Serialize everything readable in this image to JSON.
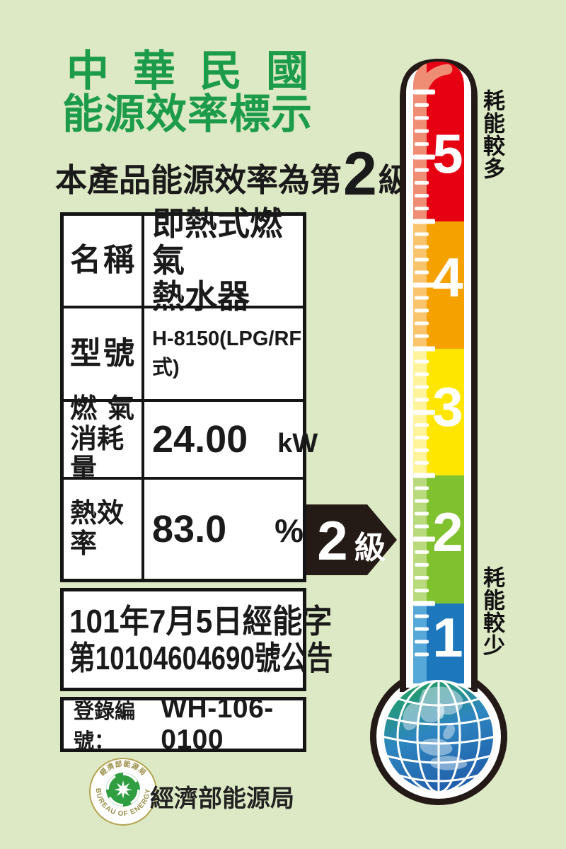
{
  "header": {
    "title_line1": "中華民國",
    "title_line2": "能源效率標示"
  },
  "subtitle": {
    "prefix": "本產品能源效率為第",
    "grade": "2",
    "suffix": "級"
  },
  "table": {
    "name_label_a": "名",
    "name_label_b": "稱",
    "name_value_line1": "即熱式燃氣",
    "name_value_line2": "熱水器",
    "model_label_a": "型",
    "model_label_b": "號",
    "model_value": "H-8150(LPG/RF式)",
    "gas_label_a": "燃",
    "gas_label_b": "氣",
    "gas_label_line2": "消耗量",
    "gas_value": "24.00",
    "gas_unit": "kW",
    "eff_label": "熱效率",
    "eff_value": "83.0",
    "eff_unit": "%",
    "announcement_line1": "101年7月5日經能字",
    "announcement_line2": "第10104604690號公告",
    "reg_label": "登錄編號：",
    "reg_value": "WH-106-0100"
  },
  "pointer": {
    "grade": "2",
    "suffix": "級"
  },
  "thermometer": {
    "top_label": "耗能較多",
    "bottom_label": "耗能較少",
    "levels": [
      {
        "value": "5",
        "color": "#e60012",
        "light": "#ef8d74"
      },
      {
        "value": "4",
        "color": "#f5a200",
        "light": "#fac46d"
      },
      {
        "value": "3",
        "color": "#ffe600",
        "light": "#fff39b"
      },
      {
        "value": "2",
        "color": "#80c12f",
        "light": "#b9da7c"
      },
      {
        "value": "1",
        "color": "#1c77bd",
        "light": "#56a8d8"
      }
    ]
  },
  "footer": {
    "agency": "經濟部能源局",
    "seal_top": "經濟部能源局",
    "seal_bottom": "BUREAU OF ENERGY"
  },
  "colors": {
    "background": "#dde8c4",
    "title_green": "#1c9b4b",
    "arrow_black": "#241b17",
    "globe_green": "#1fa05a",
    "globe_blue": "#1f5ba8"
  }
}
